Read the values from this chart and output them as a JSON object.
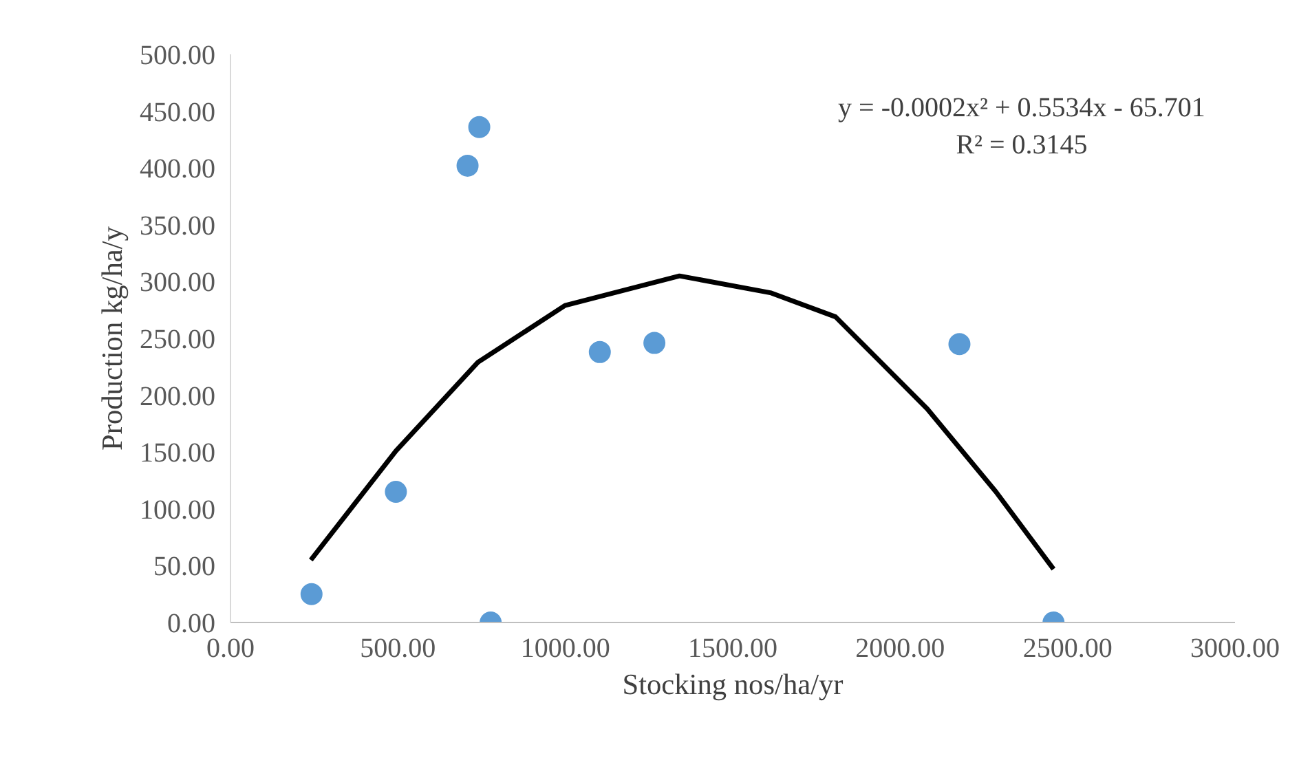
{
  "chart_data": {
    "type": "scatter",
    "xlabel": "Stocking nos/ha/yr",
    "ylabel": "Production kg/ha/y",
    "xlim": [
      0,
      3000
    ],
    "ylim": [
      0,
      500
    ],
    "xticks": [
      {
        "value": 0,
        "label": "0.00"
      },
      {
        "value": 500,
        "label": "500.00"
      },
      {
        "value": 1000,
        "label": "1000.00"
      },
      {
        "value": 1500,
        "label": "1500.00"
      },
      {
        "value": 2000,
        "label": "2000.00"
      },
      {
        "value": 2500,
        "label": "2500.00"
      },
      {
        "value": 3000,
        "label": "3000.00"
      }
    ],
    "yticks": [
      {
        "value": 0,
        "label": "0.00"
      },
      {
        "value": 50,
        "label": "50.00"
      },
      {
        "value": 100,
        "label": "100.00"
      },
      {
        "value": 150,
        "label": "150.00"
      },
      {
        "value": 200,
        "label": "200.00"
      },
      {
        "value": 250,
        "label": "250.00"
      },
      {
        "value": 300,
        "label": "300.00"
      },
      {
        "value": 350,
        "label": "350.00"
      },
      {
        "value": 400,
        "label": "400.00"
      },
      {
        "value": 450,
        "label": "450.00"
      },
      {
        "value": 500,
        "label": "500.00"
      }
    ],
    "grid": false,
    "marker": "circle",
    "series": [
      {
        "color": "#5b9bd5",
        "x": [
          242,
          494,
          708,
          743,
          777,
          1103,
          1266,
          2177,
          2458
        ],
        "values": [
          25,
          115,
          402,
          436,
          0,
          238,
          246,
          245,
          0
        ]
      },
      {
        "type": "line",
        "color": "#000000",
        "marker": "none",
        "line_style": "solid",
        "x": [
          240,
          494,
          739,
          999,
          1341,
          1615,
          1807,
          2081,
          2286,
          2458
        ],
        "values": [
          55,
          151,
          229,
          279,
          305,
          290,
          269,
          188,
          115,
          47
        ]
      }
    ],
    "annotations": [
      "y = -0.0002x² + 0.5534x - 65.701",
      "R² = 0.3145"
    ]
  }
}
